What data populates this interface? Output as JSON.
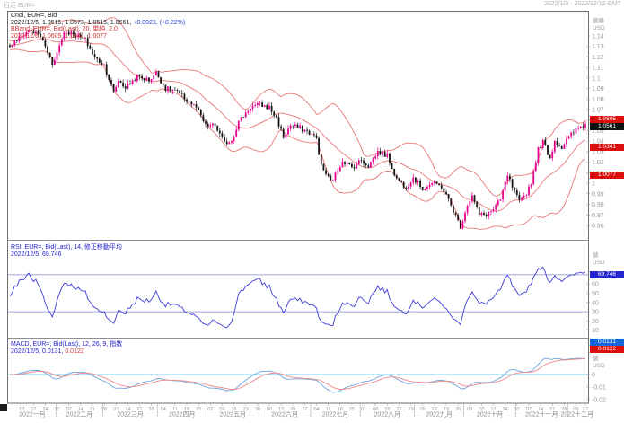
{
  "titlebar": {
    "left": "日足 EUR=",
    "right": "2022/1/3 - 2022/12/12 GMT"
  },
  "colors": {
    "candle_up": "#e60090",
    "candle_down": "#161616",
    "bollinger": "#e87878",
    "rsi_line": "#3b3bd8",
    "rsi_level": "#8585d6",
    "macd_line": "#6fa3dc",
    "macd_signal": "#ef8a8a",
    "macd_zero": "#7fd2ee",
    "badge_red": "#dd0e0e",
    "badge_black": "#111111",
    "badge_rsi_blue": "#2525d0",
    "badge_macd_blue": "#1668d8",
    "tick_text": "#999999",
    "frame": "#6e6e6e",
    "separator": "#8f8f8f"
  },
  "main_panel": {
    "legend": {
      "instrument_line": "Cndl, EUR=, Bid",
      "ohlc_line": "2022/12/5, 1.0515, 1.0573, 1.0515, 1.0561,",
      "change_text": "+0.0023, (+0.22%)",
      "bband_line": "BBand, EUR=, Bid(Last), 20, 単純, 2.0",
      "bband_values": "2022/12/5, 1.0605, 1.0341, 1.0077"
    },
    "axis": {
      "title": "価格",
      "unit": "USD",
      "ticks": [
        "1.14",
        "1.13",
        "1.12",
        "1.11",
        "1.1",
        "1.09",
        "1.08",
        "1.07",
        "1.06",
        "1.05",
        "1.04",
        "1.03",
        "1.02",
        "1.01",
        "1",
        "0.99",
        "0.98",
        "0.97",
        "0.96"
      ]
    },
    "badges": {
      "bb_upper": "1.0605",
      "last": "1.0561",
      "bb_mid": "1.0341",
      "bb_lower": "1.0077"
    }
  },
  "rsi_panel": {
    "legend_line1": "RSI, EUR=, Bid(Last), 14, 修正移動平均",
    "legend_line2": "2022/12/5, 69.746",
    "axis": {
      "title": "値",
      "unit": "USD",
      "ticks": [
        "60",
        "50",
        "40",
        "30",
        "20",
        "10"
      ]
    },
    "badge": "69.746"
  },
  "macd_panel": {
    "legend_line1": "MACD, EUR=, Bid(Last), 12, 26, 9, 指数",
    "legend_line2_left": "2022/12/5, 0.0131,",
    "legend_line2_right": "0.0122",
    "axis": {
      "title": "値",
      "unit": "USD",
      "ticks": [
        "0",
        "-0.01",
        "-0.02"
      ]
    },
    "badges": {
      "macd": "0.0131",
      "signal": "0.0122"
    }
  },
  "x_axis": {
    "months": [
      "2022一月",
      "2022二月",
      "2022三月",
      "2022四月",
      "2022五月",
      "2022六月",
      "2022七月",
      "2022八月",
      "2022九月",
      "2022十月",
      "2022十一月",
      "2022十二月"
    ],
    "weeks": [
      "10",
      "17",
      "24",
      "31",
      "07",
      "14",
      "21",
      "28",
      "07",
      "14",
      "21",
      "28",
      "04",
      "11",
      "18",
      "25",
      "02",
      "09",
      "16",
      "23",
      "30",
      "06",
      "13",
      "20",
      "27",
      "04",
      "11",
      "18",
      "25",
      "01",
      "08",
      "15",
      "22",
      "29",
      "05",
      "12",
      "19",
      "26",
      "03",
      "10",
      "17",
      "24",
      "31",
      "07",
      "14",
      "21",
      "28",
      "05",
      "12"
    ]
  },
  "chart_data": {
    "type": "candlestick",
    "symbol": "EUR=",
    "interval": "日足",
    "title": "Cndl, EUR=, Bid",
    "date_range": "2022/1/3 - 2022/12/12",
    "ylabel": "価格 (USD)",
    "ylim": [
      0.948,
      1.1554
    ],
    "yticks": [
      1.14,
      1.13,
      1.12,
      1.11,
      1.1,
      1.09,
      1.08,
      1.07,
      1.06,
      1.05,
      1.04,
      1.03,
      1.02,
      1.01,
      1.0,
      0.99,
      0.98,
      0.97,
      0.96
    ],
    "last_ohlc": {
      "date": "2022/12/5",
      "open": 1.0515,
      "high": 1.0573,
      "low": 1.0515,
      "close": 1.0561,
      "change": 0.0023,
      "change_pct": 0.22
    },
    "close_anchors": [
      [
        -40,
        1.13
      ],
      [
        -30,
        1.136
      ],
      [
        -20,
        1.128
      ],
      [
        -10,
        1.133
      ],
      [
        0,
        1.13
      ],
      [
        3,
        1.136
      ],
      [
        8,
        1.1455
      ],
      [
        13,
        1.14
      ],
      [
        18,
        1.114
      ],
      [
        20,
        1.124
      ],
      [
        23,
        1.1445
      ],
      [
        27,
        1.142
      ],
      [
        32,
        1.136
      ],
      [
        36,
        1.119
      ],
      [
        40,
        1.1125
      ],
      [
        44,
        1.086
      ],
      [
        46,
        1.098
      ],
      [
        49,
        1.091
      ],
      [
        54,
        1.1015
      ],
      [
        59,
        1.098
      ],
      [
        62,
        1.105
      ],
      [
        66,
        1.09
      ],
      [
        70,
        1.088
      ],
      [
        75,
        1.079
      ],
      [
        79,
        1.072
      ],
      [
        83,
        1.0545
      ],
      [
        87,
        1.055
      ],
      [
        91,
        1.038
      ],
      [
        94,
        1.041
      ],
      [
        97,
        1.0585
      ],
      [
        102,
        1.0725
      ],
      [
        106,
        1.0745
      ],
      [
        110,
        1.072
      ],
      [
        113,
        1.062
      ],
      [
        116,
        1.044
      ],
      [
        119,
        1.055
      ],
      [
        123,
        1.0525
      ],
      [
        127,
        1.048
      ],
      [
        130,
        1.0425
      ],
      [
        132,
        1.016
      ],
      [
        136,
        1.002
      ],
      [
        138,
        1.008
      ],
      [
        141,
        1.022
      ],
      [
        145,
        1.015
      ],
      [
        149,
        1.022
      ],
      [
        152,
        1.0165
      ],
      [
        156,
        1.03
      ],
      [
        160,
        1.026
      ],
      [
        164,
        1.004
      ],
      [
        168,
        0.9965
      ],
      [
        171,
        1.0055
      ],
      [
        175,
        0.995
      ],
      [
        179,
        1.0
      ],
      [
        183,
        0.997
      ],
      [
        186,
        0.984
      ],
      [
        189,
        0.969
      ],
      [
        191,
        0.959
      ],
      [
        194,
        0.98
      ],
      [
        196,
        0.988
      ],
      [
        199,
        0.97
      ],
      [
        202,
        0.9705
      ],
      [
        205,
        0.975
      ],
      [
        208,
        0.984
      ],
      [
        211,
        1.008
      ],
      [
        213,
        0.996
      ],
      [
        216,
        0.982
      ],
      [
        219,
        0.991
      ],
      [
        221,
        1.001
      ],
      [
        224,
        1.032
      ],
      [
        226,
        1.0395
      ],
      [
        229,
        1.024
      ],
      [
        231,
        1.04
      ],
      [
        234,
        1.034
      ],
      [
        236,
        1.041
      ],
      [
        238,
        1.046
      ],
      [
        240,
        1.0505
      ],
      [
        242,
        1.054
      ],
      [
        244,
        1.0561
      ]
    ],
    "indicators": {
      "bollinger": {
        "period": 20,
        "stdev": 2.0,
        "type": "単純",
        "upper": 1.0605,
        "middle": 1.0341,
        "lower": 1.0077
      },
      "rsi": {
        "period": 14,
        "smoothing": "修正移動平均",
        "value": 69.746,
        "levels": [
          70,
          30
        ],
        "ticks": [
          60,
          50,
          40,
          30,
          20,
          10
        ]
      },
      "macd": {
        "fast": 12,
        "slow": 26,
        "signal_period": 9,
        "type": "指数",
        "macd": 0.0131,
        "signal": 0.0122,
        "ticks": [
          0,
          -0.01,
          -0.02
        ]
      }
    },
    "month_start_days": [
      0,
      20,
      40,
      63,
      84,
      106,
      128,
      149,
      172,
      193,
      215,
      237
    ],
    "trading_days": 245
  }
}
